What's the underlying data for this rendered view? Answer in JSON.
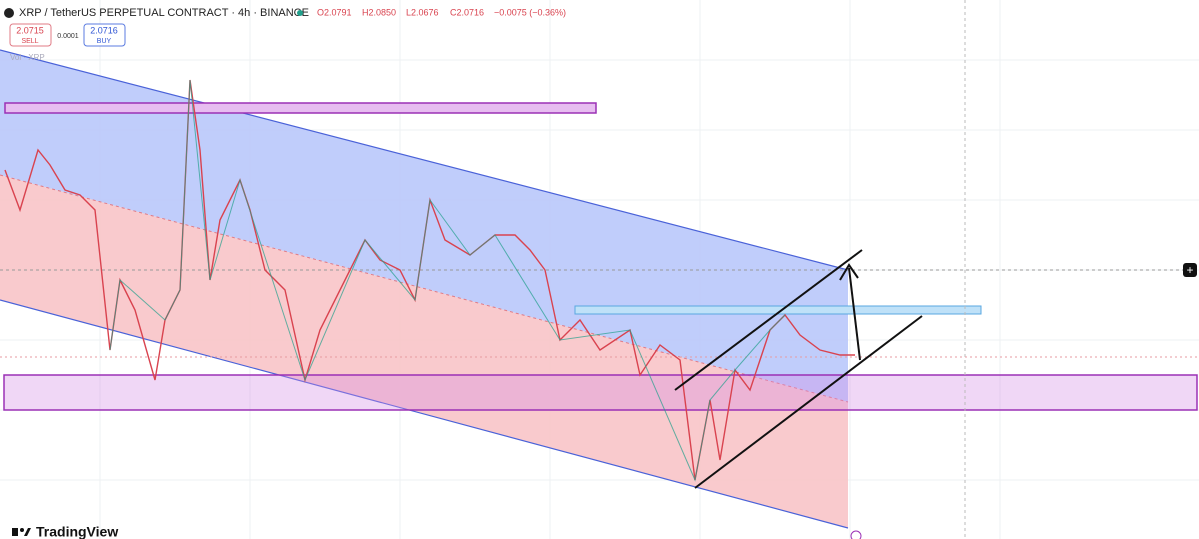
{
  "header": {
    "symbol": "XRP / TetherUS PERPETUAL CONTRACT · 4h · BINANCE",
    "open": "O2.0791",
    "high": "H2.0850",
    "low": "L2.0676",
    "close": "C2.0716",
    "change": "−0.0075 (−0.36%)"
  },
  "trade": {
    "sell_price": "2.0715",
    "sell": "SELL",
    "spread": "0.0001",
    "buy_price": "2.0716",
    "buy": "BUY"
  },
  "volume_label": "Vol · XRP",
  "footer": {
    "brand": "TradingView"
  }
}
